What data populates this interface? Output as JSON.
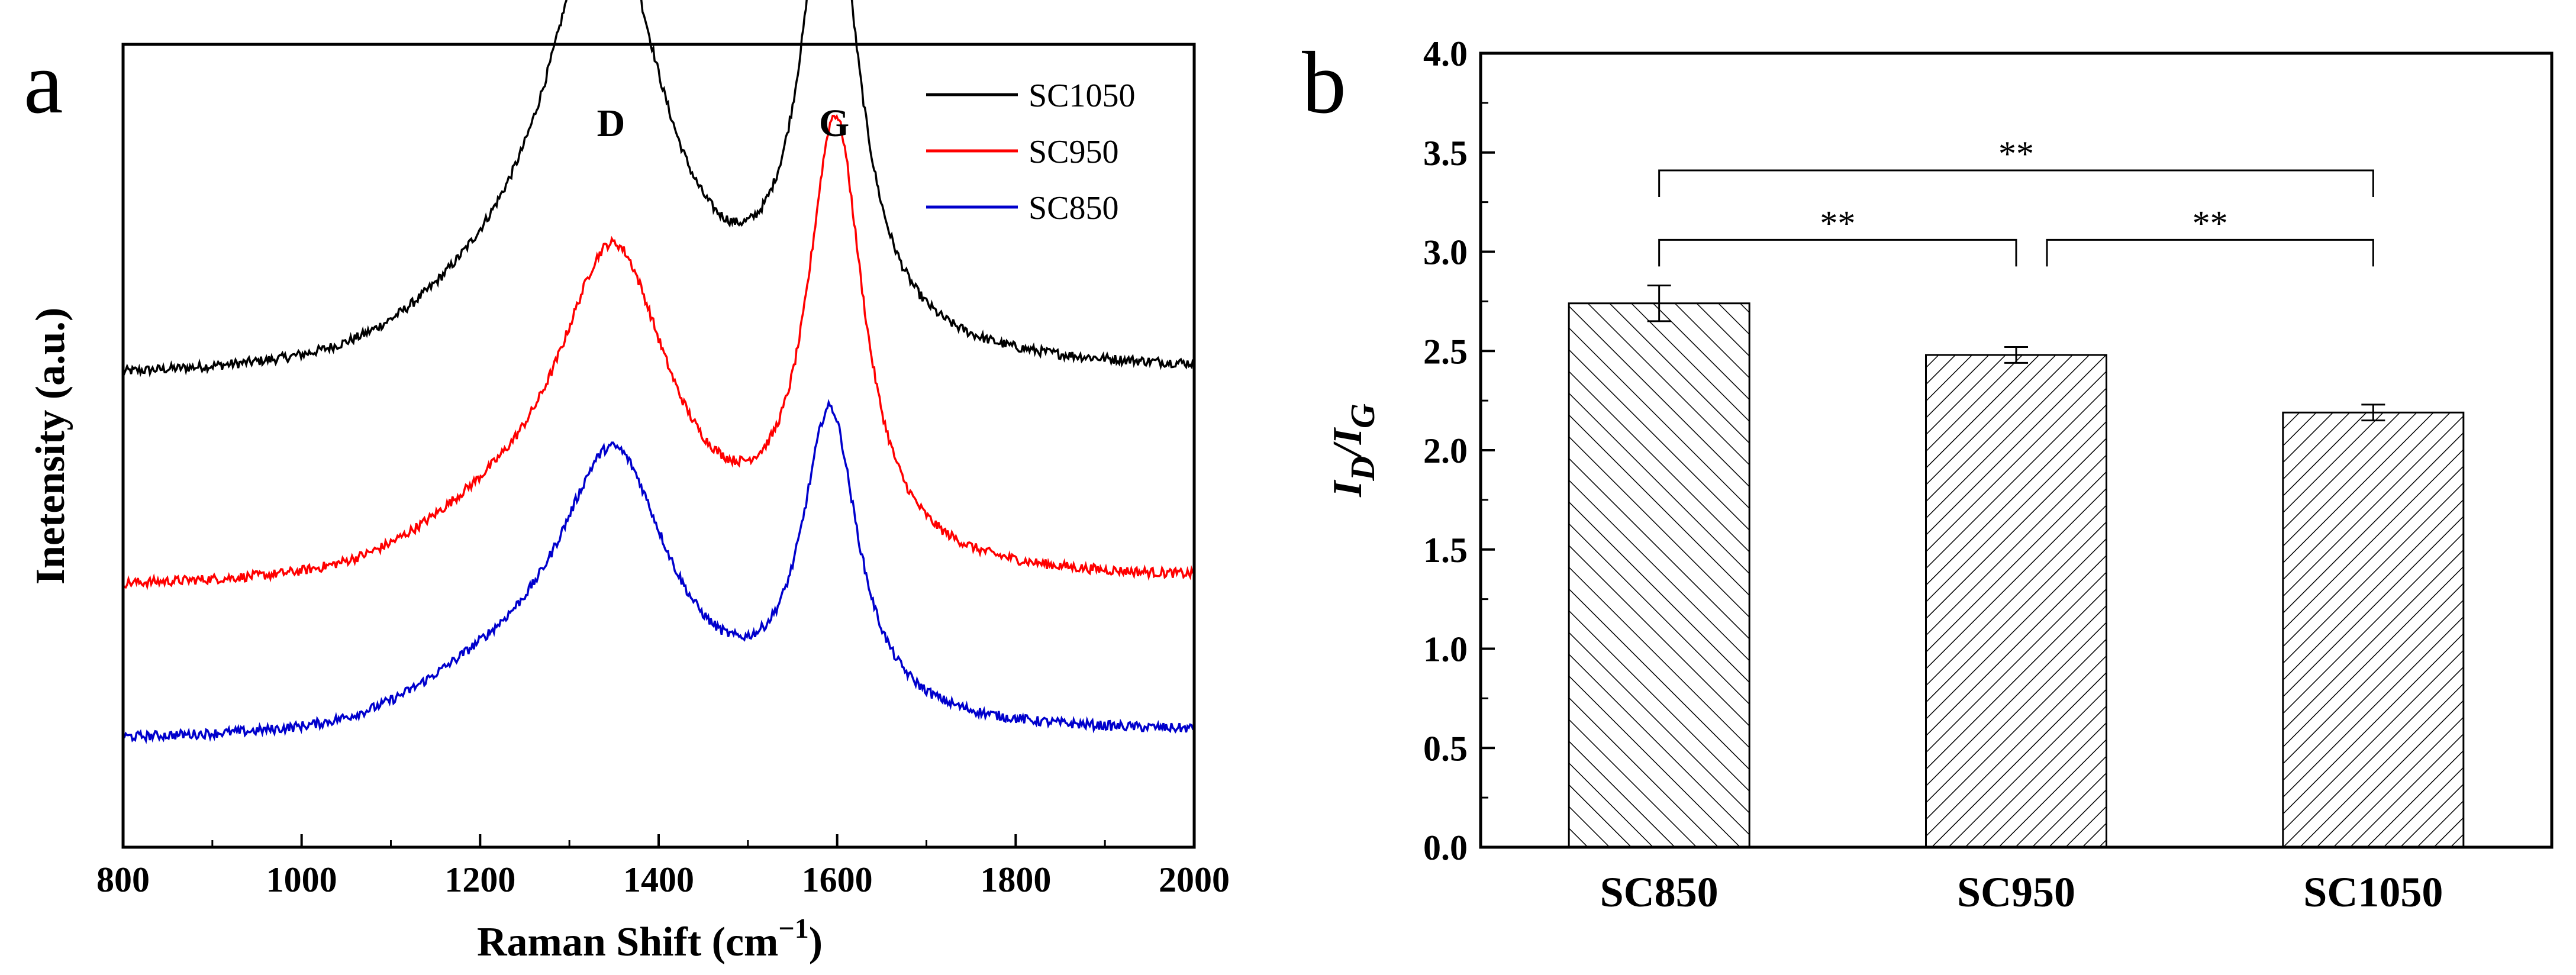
{
  "chart_data": [
    {
      "panel": "a",
      "type": "line",
      "xlabel": "Raman Shift (cm",
      "xlabel_sup": "−1",
      "xlabel_end": ")",
      "ylabel": "Inetensity (a.u.)",
      "xlim": [
        800,
        2000
      ],
      "xticks": [
        "800",
        "1000",
        "1200",
        "1400",
        "1600",
        "1800",
        "2000"
      ],
      "yticks_shown": false,
      "legend": "top-right",
      "annotations": [
        {
          "text": "D",
          "x": 1340
        },
        {
          "text": "G",
          "x": 1590
        }
      ],
      "series": [
        {
          "name": "SC1050",
          "color": "#000000",
          "baseline": 0.6,
          "d_height": 0.56,
          "d_center": 1340,
          "g_height": 0.6,
          "g_center": 1592,
          "valley": 0.24
        },
        {
          "name": "SC950",
          "color": "#ff0000",
          "baseline": 0.34,
          "d_height": 0.4,
          "d_center": 1350,
          "g_height": 0.55,
          "g_center": 1598,
          "valley": 0.2
        },
        {
          "name": "SC850",
          "color": "#0000cc",
          "baseline": 0.15,
          "d_height": 0.34,
          "d_center": 1350,
          "g_height": 0.38,
          "g_center": 1592,
          "valley": 0.22
        }
      ]
    },
    {
      "panel": "b",
      "type": "bar",
      "ylabel_main": "I",
      "ylabel_sub1": "D",
      "ylabel_sep": "/I",
      "ylabel_sub2": "G",
      "ylim": [
        0.0,
        4.0
      ],
      "yticks": [
        "0.0",
        "0.5",
        "1.0",
        "1.5",
        "2.0",
        "2.5",
        "3.0",
        "3.5",
        "4.0"
      ],
      "categories": [
        "SC850",
        "SC950",
        "SC1050"
      ],
      "values": [
        2.74,
        2.48,
        2.19
      ],
      "errors": [
        0.09,
        0.04,
        0.04
      ],
      "hatch": [
        "forward",
        "back",
        "back"
      ],
      "significance": [
        {
          "from": 0,
          "to": 2,
          "label": "**",
          "level": 3.41
        },
        {
          "from": 0,
          "to": 1,
          "label": "**",
          "level": 3.06
        },
        {
          "from": 1,
          "to": 2,
          "label": "**",
          "level": 3.06
        }
      ]
    }
  ],
  "panel_labels": {
    "a": "a",
    "b": "b"
  }
}
